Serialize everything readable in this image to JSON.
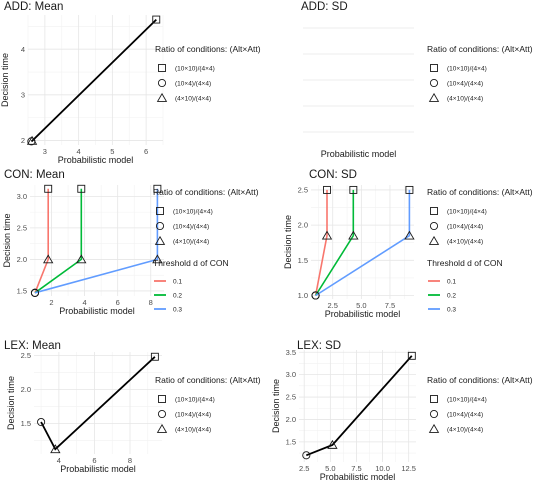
{
  "chart_data": [
    {
      "type": "line",
      "title": "ADD: Mean",
      "xlabel": "Probabilistic model",
      "ylabel": "Decision time",
      "xlim": [
        2.5,
        6.5
      ],
      "ylim": [
        1.9,
        4.75
      ],
      "xticks": [
        3,
        4,
        5,
        6
      ],
      "yticks": [
        2,
        3,
        4
      ],
      "xtick_labels": [
        "3",
        "4",
        "5",
        "6"
      ],
      "ytick_labels": [
        "2",
        "3",
        "4"
      ],
      "legend_shape": {
        "title": "Ratio of conditions: (Alt×Att)",
        "items": [
          {
            "label": "(10×10)/(4×4)",
            "shape": "square"
          },
          {
            "label": "(10×4)/(4×4)",
            "shape": "circle"
          },
          {
            "label": "(4×10)/(4×4)",
            "shape": "triangle"
          }
        ]
      },
      "legend_color": null,
      "series": [
        {
          "color": "#000000",
          "points": [
            {
              "x": 2.6,
              "y": 1.98,
              "shape": "circle"
            },
            {
              "x": 2.62,
              "y": 1.99,
              "shape": "triangle"
            },
            {
              "x": 6.3,
              "y": 4.65,
              "shape": "square"
            }
          ]
        }
      ]
    },
    {
      "type": "line",
      "title": "ADD: SD",
      "xlabel": "Probabilistic model",
      "ylabel": "",
      "xlim": [
        0,
        1
      ],
      "ylim": [
        0,
        1
      ],
      "xticks": [],
      "yticks": [],
      "xtick_labels": [],
      "ytick_labels": [],
      "hgrid_fracs": [
        0.1,
        0.3,
        0.5,
        0.7,
        0.9
      ],
      "vgrid_fracs": [],
      "legend_shape": {
        "title": "Ratio of conditions: (Alt×Att)",
        "items": [
          {
            "label": "(10×10)/(4×4)",
            "shape": "square"
          },
          {
            "label": "(10×4)/(4×4)",
            "shape": "circle"
          },
          {
            "label": "(4×10)/(4×4)",
            "shape": "triangle"
          }
        ]
      },
      "legend_color": null,
      "series": []
    },
    {
      "type": "line",
      "title": "CON: Mean",
      "xlabel": "Probabilistic model",
      "ylabel": "Decision time",
      "xlim": [
        0.7,
        8.8
      ],
      "ylim": [
        1.42,
        3.18
      ],
      "xticks": [
        2,
        4,
        6,
        8
      ],
      "yticks": [
        1.5,
        2.0,
        2.5,
        3.0
      ],
      "xtick_labels": [
        "2",
        "4",
        "6",
        "8"
      ],
      "ytick_labels": [
        "1.5",
        "2.0",
        "2.5",
        "3.0"
      ],
      "legend_shape": {
        "title": "Ratio of conditions: (Alt×Att)",
        "items": [
          {
            "label": "(10×10)/(4×4)",
            "shape": "square"
          },
          {
            "label": "(10×4)/(4×4)",
            "shape": "circle"
          },
          {
            "label": "(4×10)/(4×4)",
            "shape": "triangle"
          }
        ]
      },
      "legend_color": {
        "title": "Threshold d of CON",
        "items": [
          {
            "label": "0.1",
            "color": "#F8766D"
          },
          {
            "label": "0.2",
            "color": "#00BA38"
          },
          {
            "label": "0.3",
            "color": "#619CFF"
          }
        ]
      },
      "series": [
        {
          "color": "#F8766D",
          "points": [
            {
              "x": 1.0,
              "y": 1.47,
              "shape": "circle"
            },
            {
              "x": 1.8,
              "y": 2.0,
              "shape": "triangle"
            },
            {
              "x": 1.8,
              "y": 3.12,
              "shape": "square"
            }
          ]
        },
        {
          "color": "#00BA38",
          "points": [
            {
              "x": 1.0,
              "y": 1.47,
              "shape": "circle"
            },
            {
              "x": 3.8,
              "y": 2.0,
              "shape": "triangle"
            },
            {
              "x": 3.8,
              "y": 3.12,
              "shape": "square"
            }
          ]
        },
        {
          "color": "#619CFF",
          "points": [
            {
              "x": 1.0,
              "y": 1.47,
              "shape": "circle"
            },
            {
              "x": 8.4,
              "y": 2.0,
              "shape": "triangle"
            },
            {
              "x": 8.4,
              "y": 3.12,
              "shape": "square"
            }
          ]
        }
      ]
    },
    {
      "type": "line",
      "title": "CON: SD",
      "xlabel": "Probabilistic model",
      "ylabel": "Decision time",
      "xlim": [
        0.6,
        9.6
      ],
      "ylim": [
        0.95,
        2.57
      ],
      "xticks": [
        2.5,
        5.0,
        7.5
      ],
      "yticks": [
        1.0,
        1.5,
        2.0,
        2.5
      ],
      "xtick_labels": [
        "2.5",
        "5.0",
        "7.5"
      ],
      "ytick_labels": [
        "1.0",
        "1.5",
        "2.0",
        "2.5"
      ],
      "legend_shape": {
        "title": "Ratio of conditions: (Alt×Att)",
        "items": [
          {
            "label": "(10×10)/(4×4)",
            "shape": "square"
          },
          {
            "label": "(10×4)/(4×4)",
            "shape": "circle"
          },
          {
            "label": "(4×10)/(4×4)",
            "shape": "triangle"
          }
        ]
      },
      "legend_color": {
        "title": "Threshold d of CON",
        "items": [
          {
            "label": "0.1",
            "color": "#F8766D"
          },
          {
            "label": "0.2",
            "color": "#00BA38"
          },
          {
            "label": "0.3",
            "color": "#619CFF"
          }
        ]
      },
      "series": [
        {
          "color": "#F8766D",
          "points": [
            {
              "x": 1.0,
              "y": 1.0,
              "shape": "circle"
            },
            {
              "x": 2.0,
              "y": 1.85,
              "shape": "triangle"
            },
            {
              "x": 2.0,
              "y": 2.5,
              "shape": "square"
            }
          ]
        },
        {
          "color": "#00BA38",
          "points": [
            {
              "x": 1.0,
              "y": 1.0,
              "shape": "circle"
            },
            {
              "x": 4.3,
              "y": 1.85,
              "shape": "triangle"
            },
            {
              "x": 4.3,
              "y": 2.5,
              "shape": "square"
            }
          ]
        },
        {
          "color": "#619CFF",
          "points": [
            {
              "x": 1.0,
              "y": 1.0,
              "shape": "circle"
            },
            {
              "x": 9.2,
              "y": 1.85,
              "shape": "triangle"
            },
            {
              "x": 9.2,
              "y": 2.5,
              "shape": "square"
            }
          ]
        }
      ]
    },
    {
      "type": "line",
      "title": "LEX: Mean",
      "xlabel": "Probabilistic model",
      "ylabel": "Decision time",
      "xlim": [
        2.6,
        9.8
      ],
      "ylim": [
        1.05,
        2.55
      ],
      "xticks": [
        4,
        6,
        8
      ],
      "yticks": [
        1.5,
        2.0,
        2.5
      ],
      "xtick_labels": [
        "4",
        "6",
        "8"
      ],
      "ytick_labels": [
        "1.5",
        "2.0",
        "2.5"
      ],
      "legend_shape": {
        "title": "Ratio of conditions: (Alt×Att)",
        "items": [
          {
            "label": "(10×10)/(4×4)",
            "shape": "square"
          },
          {
            "label": "(10×4)/(4×4)",
            "shape": "circle"
          },
          {
            "label": "(4×10)/(4×4)",
            "shape": "triangle"
          }
        ]
      },
      "legend_color": null,
      "series": [
        {
          "color": "#000000",
          "points": [
            {
              "x": 3.0,
              "y": 1.52,
              "shape": "circle"
            },
            {
              "x": 3.8,
              "y": 1.12,
              "shape": "triangle"
            },
            {
              "x": 9.4,
              "y": 2.48,
              "shape": "square"
            }
          ]
        }
      ]
    },
    {
      "type": "line",
      "title": "LEX: SD",
      "xlabel": "Probabilistic model",
      "ylabel": "Decision time",
      "xlim": [
        2.0,
        13.2
      ],
      "ylim": [
        1.05,
        3.55
      ],
      "xticks": [
        2.5,
        5.0,
        7.5,
        10.0,
        12.5
      ],
      "yticks": [
        1.5,
        2.0,
        2.5,
        3.0,
        3.5
      ],
      "xtick_labels": [
        "2.5",
        "5.0",
        "7.5",
        "10.0",
        "12.5"
      ],
      "ytick_labels": [
        "1.5",
        "2.0",
        "2.5",
        "3.0",
        "3.5"
      ],
      "legend_shape": {
        "title": "Ratio of conditions: (Alt×Att)",
        "items": [
          {
            "label": "(10×10)/(4×4)",
            "shape": "square"
          },
          {
            "label": "(10×4)/(4×4)",
            "shape": "circle"
          },
          {
            "label": "(4×10)/(4×4)",
            "shape": "triangle"
          }
        ]
      },
      "legend_color": null,
      "series": [
        {
          "color": "#000000",
          "points": [
            {
              "x": 2.7,
              "y": 1.2,
              "shape": "circle"
            },
            {
              "x": 5.2,
              "y": 1.43,
              "shape": "triangle"
            },
            {
              "x": 12.8,
              "y": 3.42,
              "shape": "square"
            }
          ]
        }
      ]
    }
  ]
}
